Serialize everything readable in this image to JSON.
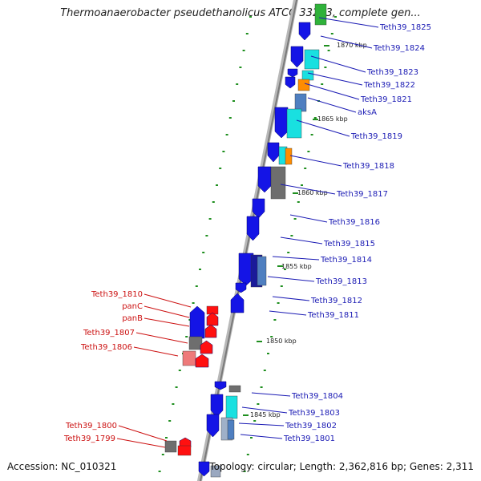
{
  "title": "Thermoanaerobacter pseudethanolicus ATCC 33223, complete gen...",
  "footer": {
    "accession": "Accession: NC_010321",
    "summary": "Topology: circular; Length: 2,362,816 bp; Genes: 2,311"
  },
  "colors": {
    "forward_label": "#1a1ab4",
    "reverse_label": "#cc1111",
    "backbone": "#9a9a9a",
    "tick": "#1f8f1f"
  },
  "kbp_markers": [
    "1870 kbp",
    "1865 kbp",
    "1860 kbp",
    "1855 kbp",
    "1850 kbp",
    "1845 kbp"
  ],
  "forward_genes": [
    "Teth39_1825",
    "Teth39_1824",
    "Teth39_1823",
    "Teth39_1822",
    "Teth39_1821",
    "aksA",
    "Teth39_1819",
    "Teth39_1818",
    "Teth39_1817",
    "Teth39_1816",
    "Teth39_1815",
    "Teth39_1814",
    "Teth39_1813",
    "Teth39_1812",
    "Teth39_1811",
    "Teth39_1804",
    "Teth39_1803",
    "Teth39_1802",
    "Teth39_1801"
  ],
  "reverse_genes": [
    "Teth39_1810",
    "panC",
    "panB",
    "Teth39_1807",
    "Teth39_1806",
    "Teth39_1800",
    "Teth39_1799"
  ]
}
